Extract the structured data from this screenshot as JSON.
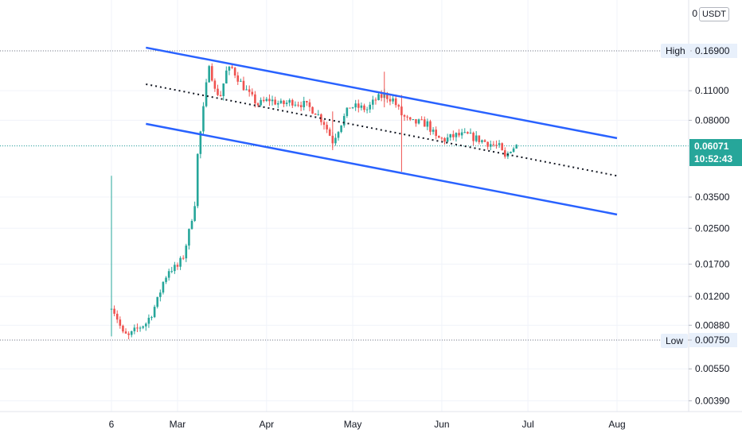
{
  "chart_data": {
    "type": "candlestick",
    "unit_label": "USDT",
    "unit_zero": "0",
    "y_scale": "log",
    "y_ticks": [
      "0.16900",
      "0.11000",
      "0.08000",
      "0.06071",
      "0.03500",
      "0.02500",
      "0.01700",
      "0.01200",
      "0.00880",
      "0.00750",
      "0.00550",
      "0.00390"
    ],
    "x_ticks": [
      "6",
      "Mar",
      "Apr",
      "May",
      "Jun",
      "Jul",
      "Aug"
    ],
    "high": {
      "label": "High",
      "value": "0.16900"
    },
    "low": {
      "label": "Low",
      "value": "0.00750"
    },
    "last_price": {
      "value": "0.06071",
      "countdown": "10:52:43"
    },
    "channel": {
      "upper": [
        [
          "Feb 18",
          0.175
        ],
        [
          "Aug 1",
          0.066
        ]
      ],
      "middle": [
        [
          "Feb 18",
          0.118
        ],
        [
          "Aug 1",
          0.044
        ]
      ],
      "lower": [
        [
          "Feb 18",
          0.077
        ],
        [
          "Aug 1",
          0.029
        ]
      ]
    },
    "price_path": [
      [
        "Feb 6",
        0.011
      ],
      [
        "Feb 8",
        0.0095
      ],
      [
        "Feb 10",
        0.008
      ],
      [
        "Feb 12",
        0.0078
      ],
      [
        "Feb 15",
        0.0085
      ],
      [
        "Feb 18",
        0.009
      ],
      [
        "Feb 20",
        0.01
      ],
      [
        "Feb 22",
        0.0115
      ],
      [
        "Feb 24",
        0.014
      ],
      [
        "Feb 26",
        0.016
      ],
      [
        "Mar 1",
        0.0165
      ],
      [
        "Mar 3",
        0.0185
      ],
      [
        "Mar 5",
        0.024
      ],
      [
        "Mar 7",
        0.033
      ],
      [
        "Mar 8",
        0.055
      ],
      [
        "Mar 10",
        0.09
      ],
      [
        "Mar 12",
        0.15
      ],
      [
        "Mar 14",
        0.11
      ],
      [
        "Mar 16",
        0.105
      ],
      [
        "Mar 18",
        0.135
      ],
      [
        "Mar 20",
        0.14
      ],
      [
        "Mar 23",
        0.12
      ],
      [
        "Mar 26",
        0.105
      ],
      [
        "Mar 29",
        0.095
      ],
      [
        "Apr 2",
        0.1
      ],
      [
        "Apr 6",
        0.095
      ],
      [
        "Apr 10",
        0.098
      ],
      [
        "Apr 14",
        0.095
      ],
      [
        "Apr 18",
        0.088
      ],
      [
        "Apr 21",
        0.078
      ],
      [
        "Apr 24",
        0.064
      ],
      [
        "Apr 27",
        0.078
      ],
      [
        "Apr 30",
        0.093
      ],
      [
        "May 3",
        0.092
      ],
      [
        "May 6",
        0.09
      ],
      [
        "May 9",
        0.1
      ],
      [
        "May 12",
        0.105
      ],
      [
        "May 15",
        0.1
      ],
      [
        "May 18",
        0.085
      ],
      [
        "May 21",
        0.078
      ],
      [
        "May 24",
        0.078
      ],
      [
        "May 27",
        0.077
      ],
      [
        "May 30",
        0.066
      ],
      [
        "Jun 2",
        0.065
      ],
      [
        "Jun 6",
        0.068
      ],
      [
        "Jun 10",
        0.068
      ],
      [
        "Jun 14",
        0.065
      ],
      [
        "Jun 18",
        0.062
      ],
      [
        "Jun 21",
        0.06
      ],
      [
        "Jun 23",
        0.053
      ],
      [
        "Jun 25",
        0.059
      ],
      [
        "Jun 27",
        0.0607
      ]
    ]
  },
  "colors": {
    "up": "#26a69a",
    "down": "#ef5350",
    "channel": "#2962ff",
    "dotted": "#131722",
    "grid": "#f0f3fa",
    "refline": "#787b86",
    "lastline": "#26a69a"
  }
}
